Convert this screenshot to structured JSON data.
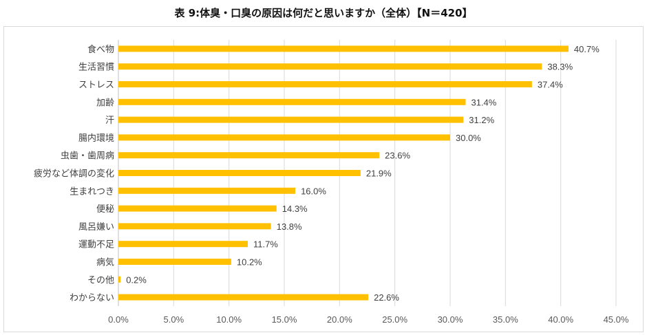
{
  "chart_data": {
    "type": "bar",
    "orientation": "horizontal",
    "title": "表 9:体臭・口臭の原因は何だと思いますか（全体）【N＝420】",
    "categories": [
      "食べ物",
      "生活習慣",
      "ストレス",
      "加齢",
      "汗",
      "腸内環境",
      "虫歯・歯周病",
      "疲労など体調の変化",
      "生まれつき",
      "便秘",
      "風呂嫌い",
      "運動不足",
      "病気",
      "その他",
      "わからない"
    ],
    "values": [
      40.7,
      38.3,
      37.4,
      31.4,
      31.2,
      30.0,
      23.6,
      21.9,
      16.0,
      14.3,
      13.8,
      11.7,
      10.2,
      0.2,
      22.6
    ],
    "value_labels": [
      "40.7%",
      "38.3%",
      "37.4%",
      "31.4%",
      "31.2%",
      "30.0%",
      "23.6%",
      "21.9%",
      "16.0%",
      "14.3%",
      "13.8%",
      "11.7%",
      "10.2%",
      "0.2%",
      "22.6%"
    ],
    "xlim": [
      0,
      45
    ],
    "x_ticks": [
      0,
      5,
      10,
      15,
      20,
      25,
      30,
      35,
      40,
      45
    ],
    "x_tick_labels": [
      "0.0%",
      "5.0%",
      "10.0%",
      "15.0%",
      "20.0%",
      "25.0%",
      "30.0%",
      "35.0%",
      "40.0%",
      "45.0%"
    ],
    "xlabel": "",
    "ylabel": "",
    "grid": true,
    "legend": "none",
    "bar_color": "#FFC000",
    "grid_color": "#d9d9d9"
  }
}
